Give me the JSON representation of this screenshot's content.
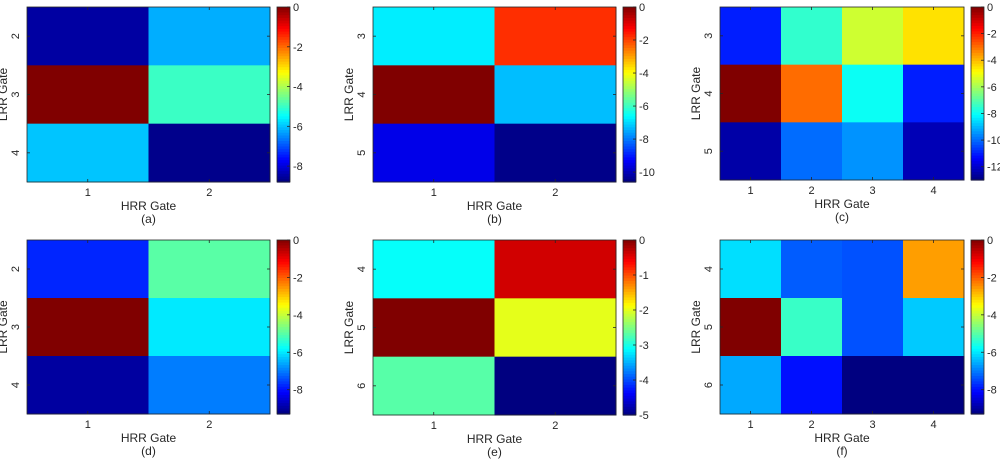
{
  "chart_data": [
    {
      "type": "heatmap",
      "caption": "(a)",
      "xlabel": "HRR Gate",
      "ylabel": "LRR Gate",
      "x_categories": [
        "1",
        "2"
      ],
      "y_categories": [
        "2",
        "3",
        "4"
      ],
      "values": [
        [
          -8.5,
          -6.2
        ],
        [
          0.0,
          -5.0
        ],
        [
          -6.0,
          -8.7
        ]
      ],
      "clim": [
        -8.8,
        0
      ],
      "colorbar_ticks": [
        0,
        -2,
        -4,
        -6,
        -8
      ],
      "colorbar_labels": [
        "0",
        "-2",
        "-4",
        "-6",
        "-8"
      ],
      "colormap": "jet"
    },
    {
      "type": "heatmap",
      "caption": "(b)",
      "xlabel": "HRR Gate",
      "ylabel": "LRR Gate",
      "x_categories": [
        "1",
        "2"
      ],
      "y_categories": [
        "3",
        "4",
        "5"
      ],
      "values": [
        [
          -6.8,
          -1.8
        ],
        [
          0.0,
          -7.3
        ],
        [
          -9.5,
          -10.5
        ]
      ],
      "clim": [
        -10.6,
        0
      ],
      "colorbar_ticks": [
        0,
        -2,
        -4,
        -6,
        -8,
        -10
      ],
      "colorbar_labels": [
        "0",
        "-2",
        "-4",
        "-6",
        "-8",
        "-10"
      ],
      "colormap": "jet"
    },
    {
      "type": "heatmap",
      "caption": "(c)",
      "xlabel": "HRR Gate",
      "ylabel": "LRR Gate",
      "x_categories": [
        "1",
        "2",
        "3",
        "4"
      ],
      "y_categories": [
        "3",
        "4",
        "5"
      ],
      "values": [
        [
          -11.0,
          -7.5,
          -5.5,
          -4.5
        ],
        [
          0.0,
          -3.0,
          -8.0,
          -11.0
        ],
        [
          -12.5,
          -10.0,
          -9.5,
          -12.3
        ]
      ],
      "clim": [
        -13,
        0
      ],
      "colorbar_ticks": [
        0,
        -2,
        -4,
        -6,
        -8,
        -10,
        -12
      ],
      "colorbar_labels": [
        "0",
        "-2",
        "-4",
        "-6",
        "-8",
        "-10",
        "-12"
      ],
      "colormap": "jet"
    },
    {
      "type": "heatmap",
      "caption": "(d)",
      "xlabel": "HRR Gate",
      "ylabel": "LRR Gate",
      "x_categories": [
        "1",
        "2"
      ],
      "y_categories": [
        "2",
        "3",
        "4"
      ],
      "values": [
        [
          -7.8,
          -5.0
        ],
        [
          0.0,
          -6.0
        ],
        [
          -9.0,
          -7.0
        ]
      ],
      "clim": [
        -9.3,
        0
      ],
      "colorbar_ticks": [
        0,
        -2,
        -4,
        -6,
        -8
      ],
      "colorbar_labels": [
        "0",
        "-2",
        "-4",
        "-6",
        "-8"
      ],
      "colormap": "jet"
    },
    {
      "type": "heatmap",
      "caption": "(e)",
      "xlabel": "HRR Gate",
      "ylabel": "LRR Gate",
      "x_categories": [
        "1",
        "2"
      ],
      "y_categories": [
        "4",
        "5",
        "6"
      ],
      "values": [
        [
          -3.1,
          -0.4
        ],
        [
          0.0,
          -2.0
        ],
        [
          -2.7,
          -5.0
        ]
      ],
      "clim": [
        -5.0,
        0
      ],
      "colorbar_ticks": [
        0,
        -1,
        -2,
        -3,
        -4,
        -5
      ],
      "colorbar_labels": [
        "0",
        "-1",
        "-2",
        "-3",
        "-4",
        "-5"
      ],
      "colormap": "jet"
    },
    {
      "type": "heatmap",
      "caption": "(f)",
      "xlabel": "HRR Gate",
      "ylabel": "LRR Gate",
      "x_categories": [
        "1",
        "2",
        "3",
        "4"
      ],
      "y_categories": [
        "4",
        "5",
        "6"
      ],
      "values": [
        [
          -6.1,
          -7.3,
          -7.4,
          -2.6
        ],
        [
          0.0,
          -5.3,
          -7.4,
          -6.3
        ],
        [
          -6.6,
          -8.0,
          -9.3,
          -9.3
        ]
      ],
      "clim": [
        -9.3,
        0
      ],
      "colorbar_ticks": [
        0,
        -2,
        -4,
        -6,
        -8
      ],
      "colorbar_labels": [
        "0",
        "-2",
        "-4",
        "-6",
        "-8"
      ],
      "colormap": "jet"
    }
  ]
}
